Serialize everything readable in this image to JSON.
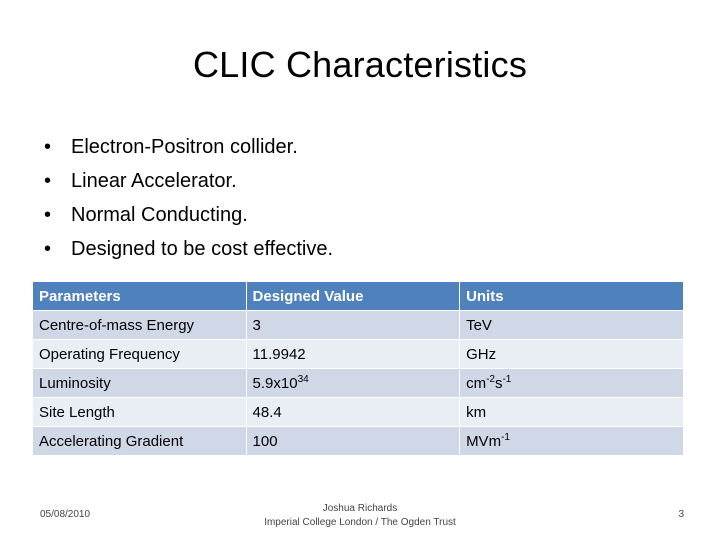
{
  "slide": {
    "title": "CLIC Characteristics",
    "bullets": [
      "Electron-Positron collider.",
      "Linear Accelerator.",
      "Normal Conducting.",
      "Designed to be cost effective."
    ],
    "table": {
      "headers": [
        "Parameters",
        "Designed Value",
        "Units"
      ],
      "rows": [
        {
          "param": "Centre-of-mass Energy",
          "value": "3",
          "unit": "TeV"
        },
        {
          "param": "Operating Frequency",
          "value": "11.9942",
          "unit": "GHz"
        },
        {
          "param": "Luminosity",
          "value_base": "5.9x10",
          "value_exp": "34",
          "unit_base": "cm",
          "unit_exp1": "-2",
          "unit_mid": "s",
          "unit_exp2": "-1"
        },
        {
          "param": "Site Length",
          "value": "48.4",
          "unit": "km"
        },
        {
          "param": "Accelerating Gradient",
          "value": "100",
          "unit_base": "MVm",
          "unit_exp": "-1"
        }
      ]
    },
    "footer": {
      "date": "05/08/2010",
      "author": "Joshua Richards",
      "affiliation": "Imperial College London / The Ogden Trust",
      "page": "3"
    }
  },
  "colors": {
    "header_bg": "#4f81bd",
    "row_dark": "#d0d8e8",
    "row_light": "#e9edf4"
  }
}
